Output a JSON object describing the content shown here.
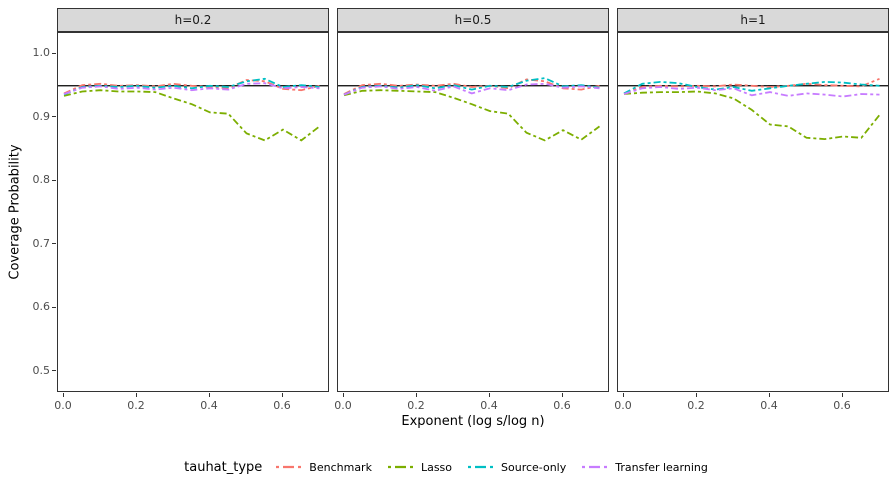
{
  "chart_data": {
    "type": "line",
    "title": "",
    "xlabel": "Exponent (log s/log n)",
    "ylabel": "Coverage Probability",
    "legend_title": "tauhat_type",
    "legend_position": "bottom",
    "grid": false,
    "line_style": "dot-dash",
    "reference_line": {
      "y": 0.95,
      "color": "#000000"
    },
    "axis": {
      "xticks": [
        "0.0",
        "0.2",
        "0.4",
        "0.6"
      ],
      "yticks": [
        "1.0",
        "0.9",
        "0.8",
        "0.7",
        "0.6",
        "0.5"
      ],
      "xlim": [
        -0.016,
        0.73
      ],
      "ylim": [
        0.465,
        1.033
      ]
    },
    "series_colors": {
      "Benchmark": "#F8766D",
      "Lasso": "#7CAE00",
      "Source-only": "#00BFC4",
      "Transfer learning": "#C77CFF"
    },
    "x": [
      0.0,
      0.05,
      0.1,
      0.15,
      0.2,
      0.25,
      0.3,
      0.35,
      0.4,
      0.45,
      0.5,
      0.55,
      0.6,
      0.65,
      0.7
    ],
    "facets": [
      {
        "label": "h=0.2",
        "series": [
          {
            "name": "Benchmark",
            "values": [
              0.938,
              0.951,
              0.953,
              0.95,
              0.951,
              0.949,
              0.953,
              0.95,
              0.948,
              0.946,
              0.959,
              0.957,
              0.945,
              0.943,
              0.95
            ]
          },
          {
            "name": "Lasso",
            "values": [
              0.934,
              0.941,
              0.943,
              0.941,
              0.941,
              0.94,
              0.93,
              0.921,
              0.908,
              0.906,
              0.875,
              0.864,
              0.881,
              0.864,
              0.886
            ]
          },
          {
            "name": "Source-only",
            "values": [
              0.936,
              0.948,
              0.95,
              0.948,
              0.95,
              0.947,
              0.95,
              0.946,
              0.95,
              0.948,
              0.957,
              0.961,
              0.948,
              0.951,
              0.948
            ]
          },
          {
            "name": "Transfer learning",
            "values": [
              0.937,
              0.947,
              0.949,
              0.945,
              0.947,
              0.944,
              0.947,
              0.943,
              0.946,
              0.944,
              0.953,
              0.954,
              0.946,
              0.948,
              0.946
            ]
          }
        ]
      },
      {
        "label": "h=0.5",
        "series": [
          {
            "name": "Benchmark",
            "values": [
              0.937,
              0.951,
              0.953,
              0.95,
              0.952,
              0.95,
              0.953,
              0.948,
              0.95,
              0.946,
              0.96,
              0.957,
              0.946,
              0.944,
              0.95
            ]
          },
          {
            "name": "Lasso",
            "values": [
              0.935,
              0.942,
              0.943,
              0.942,
              0.941,
              0.94,
              0.931,
              0.921,
              0.91,
              0.906,
              0.876,
              0.864,
              0.88,
              0.865,
              0.886
            ]
          },
          {
            "name": "Source-only",
            "values": [
              0.936,
              0.948,
              0.95,
              0.947,
              0.951,
              0.946,
              0.951,
              0.944,
              0.95,
              0.948,
              0.958,
              0.962,
              0.949,
              0.951,
              0.947
            ]
          },
          {
            "name": "Transfer learning",
            "values": [
              0.936,
              0.947,
              0.949,
              0.945,
              0.948,
              0.942,
              0.949,
              0.938,
              0.946,
              0.943,
              0.952,
              0.953,
              0.947,
              0.949,
              0.946
            ]
          }
        ]
      },
      {
        "label": "h=1",
        "series": [
          {
            "name": "Benchmark",
            "values": [
              0.938,
              0.948,
              0.95,
              0.949,
              0.95,
              0.949,
              0.952,
              0.95,
              0.948,
              0.95,
              0.953,
              0.951,
              0.95,
              0.949,
              0.961
            ]
          },
          {
            "name": "Lasso",
            "values": [
              0.937,
              0.939,
              0.94,
              0.94,
              0.941,
              0.938,
              0.93,
              0.912,
              0.889,
              0.886,
              0.868,
              0.866,
              0.87,
              0.868,
              0.904
            ]
          },
          {
            "name": "Source-only",
            "values": [
              0.938,
              0.953,
              0.956,
              0.954,
              0.948,
              0.944,
              0.948,
              0.942,
              0.946,
              0.95,
              0.953,
              0.956,
              0.955,
              0.952,
              0.95
            ]
          },
          {
            "name": "Transfer learning",
            "values": [
              0.937,
              0.946,
              0.948,
              0.945,
              0.947,
              0.943,
              0.946,
              0.935,
              0.94,
              0.934,
              0.938,
              0.936,
              0.933,
              0.937,
              0.936
            ]
          }
        ]
      }
    ]
  }
}
